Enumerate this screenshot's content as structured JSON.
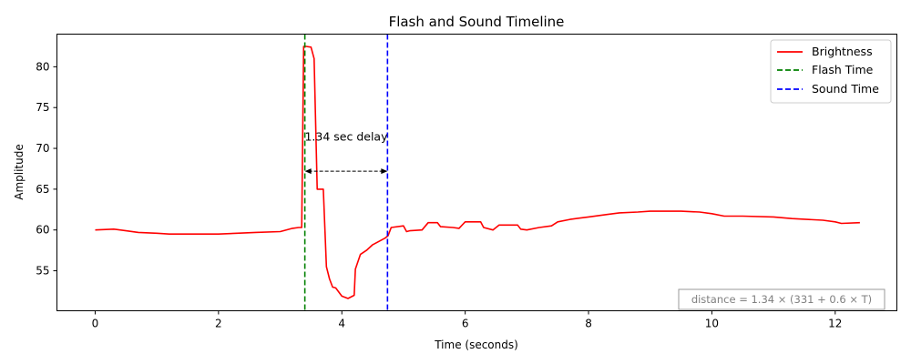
{
  "chart_data": {
    "type": "line",
    "title": "Flash and Sound Timeline",
    "xlabel": "Time (seconds)",
    "ylabel": "Amplitude",
    "xlim": [
      -0.62,
      13.0
    ],
    "ylim": [
      50.1,
      84.0
    ],
    "xticks": [
      0,
      2,
      4,
      6,
      8,
      10,
      12
    ],
    "yticks": [
      55,
      60,
      65,
      70,
      75,
      80
    ],
    "grid": false,
    "legend_position": "top-right",
    "series": [
      {
        "name": "Brightness",
        "color": "#ff0000",
        "x": [
          0.0,
          0.3,
          0.5,
          0.7,
          1.0,
          1.2,
          1.5,
          2.0,
          2.3,
          2.6,
          3.0,
          3.2,
          3.3,
          3.35,
          3.38,
          3.42,
          3.5,
          3.55,
          3.6,
          3.7,
          3.75,
          3.8,
          3.85,
          3.9,
          4.0,
          4.1,
          4.2,
          4.22,
          4.3,
          4.4,
          4.5,
          4.6,
          4.7,
          4.75,
          4.8,
          5.0,
          5.05,
          5.1,
          5.3,
          5.4,
          5.55,
          5.6,
          5.8,
          5.9,
          6.0,
          6.25,
          6.3,
          6.45,
          6.55,
          6.85,
          6.9,
          7.0,
          7.2,
          7.4,
          7.5,
          7.7,
          8.0,
          8.3,
          8.5,
          8.8,
          9.0,
          9.3,
          9.5,
          9.8,
          10.0,
          10.2,
          10.5,
          11.0,
          11.3,
          11.8,
          12.0,
          12.1,
          12.4
        ],
        "y": [
          60.0,
          60.1,
          59.9,
          59.7,
          59.6,
          59.5,
          59.5,
          59.5,
          59.6,
          59.7,
          59.8,
          60.2,
          60.3,
          60.3,
          82.5,
          82.5,
          82.4,
          81.0,
          65.0,
          65.0,
          55.5,
          54.0,
          53.0,
          52.9,
          51.9,
          51.6,
          52.0,
          55.2,
          57.0,
          57.5,
          58.2,
          58.6,
          59.0,
          59.3,
          60.3,
          60.5,
          59.8,
          59.9,
          60.0,
          60.9,
          60.9,
          60.4,
          60.3,
          60.2,
          61.0,
          61.0,
          60.3,
          60.0,
          60.6,
          60.6,
          60.1,
          60.0,
          60.3,
          60.5,
          61.0,
          61.3,
          61.6,
          61.9,
          62.1,
          62.2,
          62.3,
          62.3,
          62.3,
          62.2,
          62.0,
          61.7,
          61.7,
          61.6,
          61.4,
          61.2,
          61.0,
          60.8,
          60.9
        ]
      },
      {
        "name": "Flash Time",
        "color": "#008000",
        "style": "dashed",
        "x": 3.4
      },
      {
        "name": "Sound Time",
        "color": "#0000ff",
        "style": "dashed",
        "x": 4.74
      }
    ],
    "annotations": [
      {
        "text": "1.34 sec delay",
        "arrow_from": 3.4,
        "arrow_to": 4.74,
        "arrow_y": 67.2,
        "text_y": 71.4
      }
    ],
    "formula_box": "distance = 1.34 × (331 + 0.6 × T)"
  }
}
